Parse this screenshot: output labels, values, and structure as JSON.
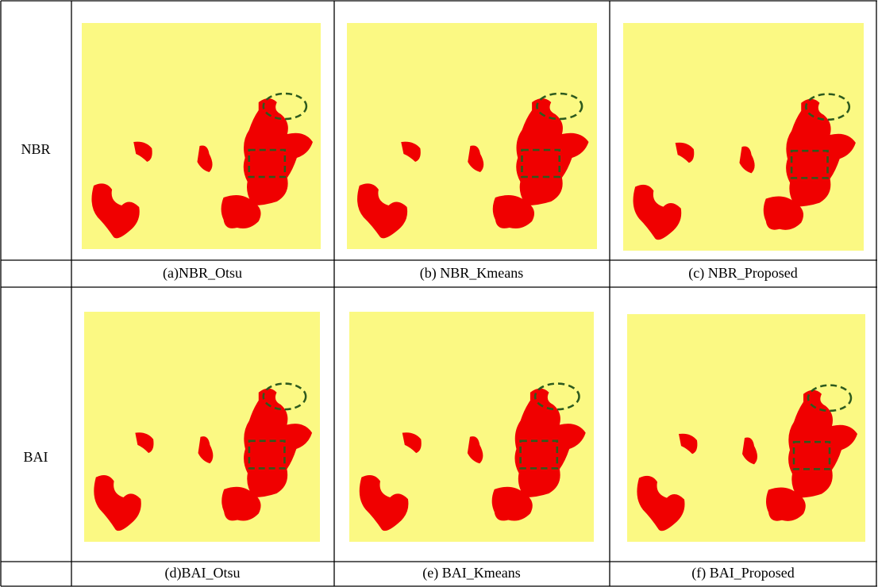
{
  "rows": [
    {
      "label": "NBR",
      "captions": [
        "(a)NBR_Otsu",
        "(b) NBR_Kmeans",
        "(c) NBR_Proposed"
      ]
    },
    {
      "label": "BAI",
      "captions": [
        "(d)BAI_Otsu",
        "(e) BAI_Kmeans",
        "(f) BAI_Proposed"
      ]
    }
  ]
}
